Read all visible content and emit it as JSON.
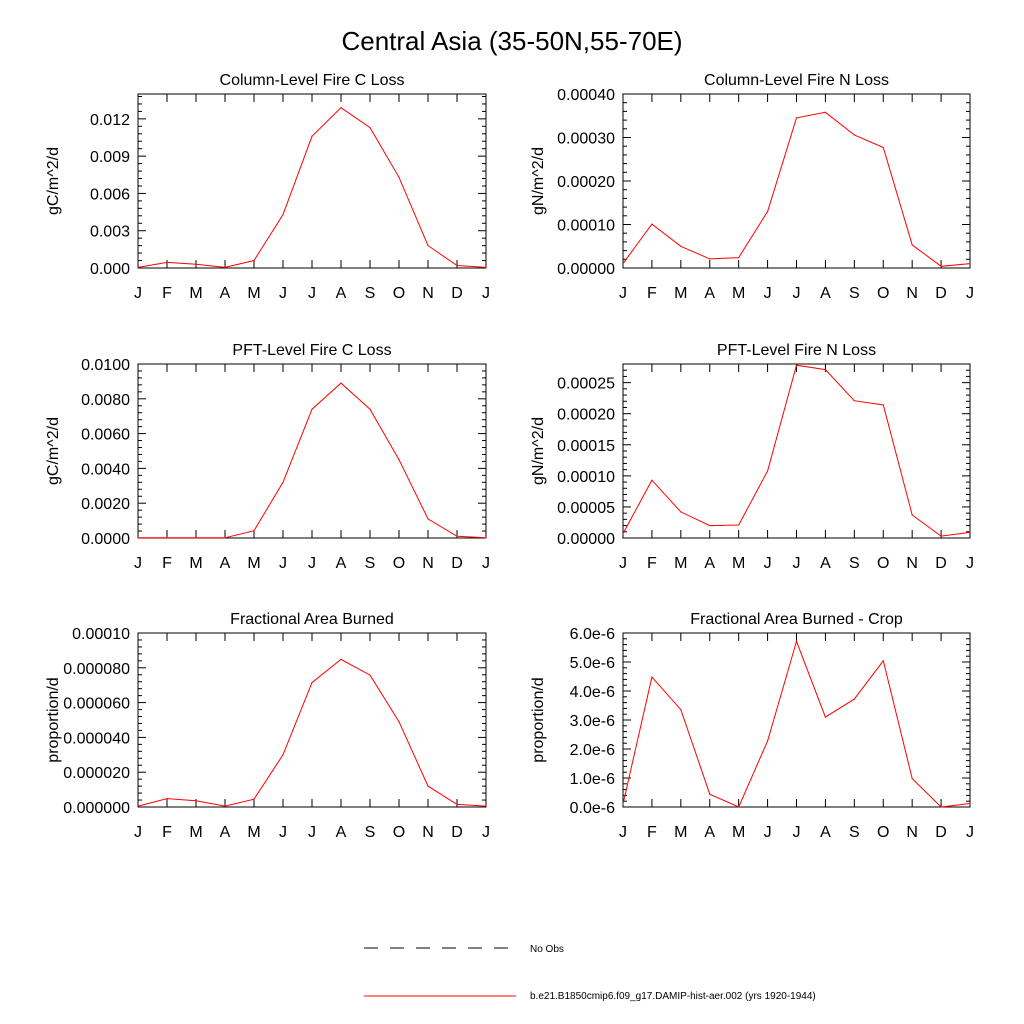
{
  "figure": {
    "title": "Central Asia (35-50N,55-70E)",
    "line_color": "#ff0000",
    "months": [
      "J",
      "F",
      "M",
      "A",
      "M",
      "J",
      "J",
      "A",
      "S",
      "O",
      "N",
      "D",
      "J"
    ]
  },
  "legend": {
    "obs_label": "No Obs",
    "model_label": "b.e21.B1850cmip6.f09_g17.DAMIP-hist-aer.002 (yrs 1920-1944)"
  },
  "chart_data": [
    {
      "type": "line",
      "title": "Column-Level Fire C Loss",
      "ylabel": "gC/m^2/d",
      "ylim": [
        0,
        0.014
      ],
      "yticks": [
        0,
        0.003,
        0.006,
        0.009,
        0.012
      ],
      "ytick_labels": [
        "0.000",
        "0.003",
        "0.006",
        "0.009",
        "0.012"
      ],
      "categories": [
        "J",
        "F",
        "M",
        "A",
        "M",
        "J",
        "J",
        "A",
        "S",
        "O",
        "N",
        "D",
        "J"
      ],
      "values": [
        5e-05,
        0.00045,
        0.0003,
        5e-05,
        0.0006,
        0.0043,
        0.0106,
        0.0129,
        0.0113,
        0.0073,
        0.0018,
        0.0002,
        5e-05
      ]
    },
    {
      "type": "line",
      "title": "Column-Level Fire N Loss",
      "ylabel": "gN/m^2/d",
      "ylim": [
        0,
        0.0004
      ],
      "yticks": [
        0,
        0.0001,
        0.0002,
        0.0003,
        0.0004
      ],
      "ytick_labels": [
        "0.00000",
        "0.00010",
        "0.00020",
        "0.00030",
        "0.00040"
      ],
      "categories": [
        "J",
        "F",
        "M",
        "A",
        "M",
        "J",
        "J",
        "A",
        "S",
        "O",
        "N",
        "D",
        "J"
      ],
      "values": [
        1e-05,
        0.000101,
        5e-05,
        2.1e-05,
        2.4e-05,
        0.00013,
        0.000345,
        0.000358,
        0.000306,
        0.000277,
        5.3e-05,
        4e-06,
        1e-05
      ]
    },
    {
      "type": "line",
      "title": "PFT-Level Fire C Loss",
      "ylabel": "gC/m^2/d",
      "ylim": [
        0,
        0.01
      ],
      "yticks": [
        0,
        0.002,
        0.004,
        0.006,
        0.008,
        0.01
      ],
      "ytick_labels": [
        "0.0000",
        "0.0020",
        "0.0040",
        "0.0060",
        "0.0080",
        "0.0100"
      ],
      "categories": [
        "J",
        "F",
        "M",
        "A",
        "M",
        "J",
        "J",
        "A",
        "S",
        "O",
        "N",
        "D",
        "J"
      ],
      "values": [
        1e-05,
        1e-05,
        1e-05,
        1e-05,
        0.00042,
        0.0032,
        0.0074,
        0.0089,
        0.0074,
        0.0045,
        0.0011,
        0.0001,
        1e-05
      ]
    },
    {
      "type": "line",
      "title": "PFT-Level Fire N Loss",
      "ylabel": "gN/m^2/d",
      "ylim": [
        0,
        0.00028
      ],
      "yticks": [
        0,
        5e-05,
        0.0001,
        0.00015,
        0.0002,
        0.00025
      ],
      "ytick_labels": [
        "0.00000",
        "0.00005",
        "0.00010",
        "0.00015",
        "0.00020",
        "0.00025"
      ],
      "categories": [
        "J",
        "F",
        "M",
        "A",
        "M",
        "J",
        "J",
        "A",
        "S",
        "O",
        "N",
        "D",
        "J"
      ],
      "values": [
        7e-06,
        9.3e-05,
        4.2e-05,
        2e-05,
        2.1e-05,
        0.000108,
        0.000278,
        0.000271,
        0.000221,
        0.000214,
        3.7e-05,
        3e-06,
        9e-06
      ]
    },
    {
      "type": "line",
      "title": "Fractional Area Burned",
      "ylabel": "proportion/d",
      "ylim": [
        0,
        0.0001
      ],
      "yticks": [
        0,
        2e-05,
        4e-05,
        6e-05,
        8e-05,
        0.0001
      ],
      "ytick_labels": [
        "0.000000",
        "0.000020",
        "0.000040",
        "0.000060",
        "0.000080",
        "0.00010"
      ],
      "categories": [
        "J",
        "F",
        "M",
        "A",
        "M",
        "J",
        "J",
        "A",
        "S",
        "O",
        "N",
        "D",
        "J"
      ],
      "values": [
        5e-07,
        4.8e-06,
        3.6e-06,
        5e-07,
        4.5e-06,
        3e-05,
        7.15e-05,
        8.48e-05,
        7.58e-05,
        4.9e-05,
        1.2e-05,
        1.5e-06,
        5e-07
      ]
    },
    {
      "type": "line",
      "title": "Fractional Area Burned - Crop",
      "ylabel": "proportion/d",
      "ylim": [
        0,
        6e-06
      ],
      "yticks": [
        0,
        1e-06,
        2e-06,
        3e-06,
        4e-06,
        5e-06,
        6e-06
      ],
      "ytick_labels": [
        "0.0e-6",
        "1.0e-6",
        "2.0e-6",
        "3.0e-6",
        "4.0e-6",
        "5.0e-6",
        "6.0e-6"
      ],
      "categories": [
        "J",
        "F",
        "M",
        "A",
        "M",
        "J",
        "J",
        "A",
        "S",
        "O",
        "N",
        "D",
        "J"
      ],
      "values": [
        1e-07,
        4.48e-06,
        3.36e-06,
        4.4e-07,
        0.0,
        2.28e-06,
        5.71e-06,
        3.1e-06,
        3.72e-06,
        5.04e-06,
        9.8e-07,
        0.0,
        1.2e-07
      ]
    }
  ]
}
